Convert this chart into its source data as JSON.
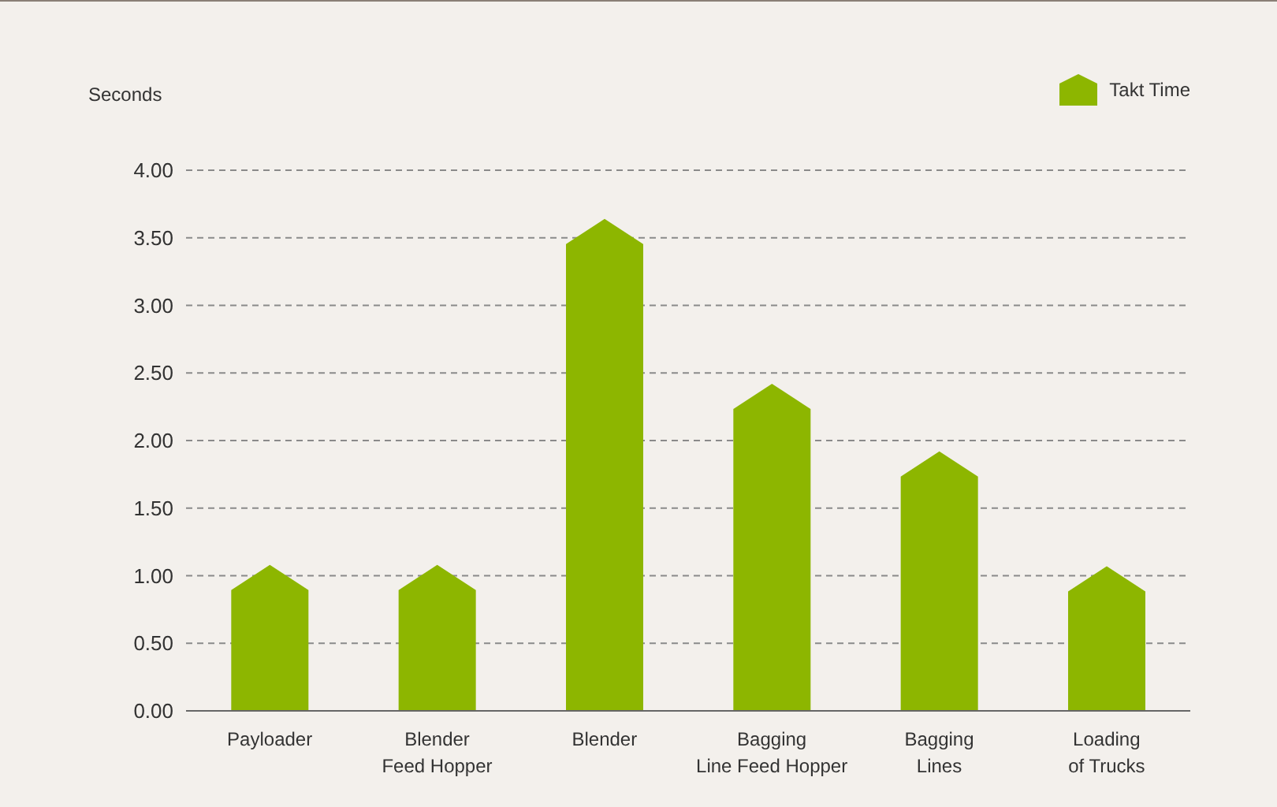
{
  "chart_data": {
    "type": "bar",
    "ylabel": "Seconds",
    "categories": [
      "Payloader",
      "Blender\nFeed Hopper",
      "Blender",
      "Bagging\nLine Feed Hopper",
      "Bagging\nLines",
      "Loading\nof Trucks"
    ],
    "series": [
      {
        "name": "Takt Time",
        "color": "#8db600",
        "values": [
          1.08,
          1.08,
          3.64,
          2.42,
          1.92,
          1.07
        ]
      }
    ],
    "ylim": [
      0,
      4
    ],
    "yticks": [
      {
        "value": 0,
        "label": "0.00"
      },
      {
        "value": 0.5,
        "label": "0.50"
      },
      {
        "value": 1,
        "label": "1.00"
      },
      {
        "value": 1.5,
        "label": "1.50"
      },
      {
        "value": 2,
        "label": "2.00"
      },
      {
        "value": 2.5,
        "label": "2.50"
      },
      {
        "value": 3,
        "label": "3.00"
      },
      {
        "value": 3.5,
        "label": "3.50"
      },
      {
        "value": 4,
        "label": "4.00"
      }
    ],
    "grid": "y",
    "legend": "top right"
  }
}
